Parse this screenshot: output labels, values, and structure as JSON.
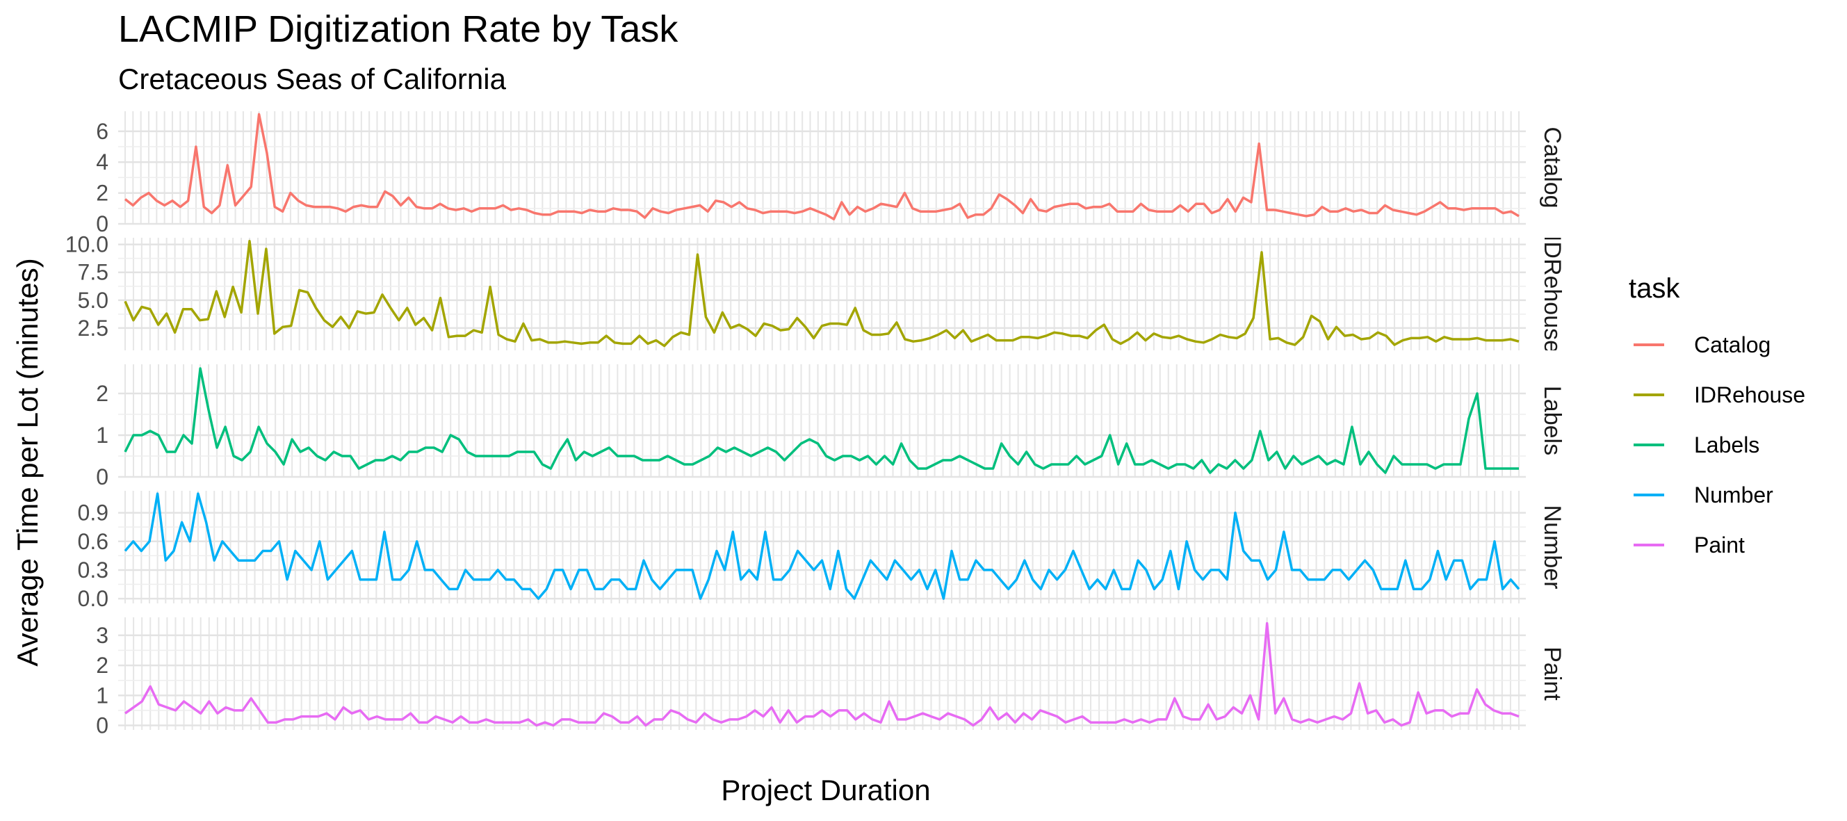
{
  "chart_data": {
    "type": "line",
    "title": "LACMIP Digitization Rate by Task",
    "subtitle": "Cretaceous Seas of California",
    "xlabel": "Project Duration",
    "ylabel": "Average Time per Lot (minutes)",
    "legend": {
      "title": "task",
      "position": "right"
    },
    "grid": true,
    "panels": [
      {
        "strip_label": "Catalog",
        "series": "Catalog",
        "color": "#F8766D",
        "ylim": [
          0,
          7.3
        ],
        "yticks": [
          0,
          2,
          4,
          6
        ],
        "yticklabels": [
          "0",
          "2",
          "4",
          "6"
        ],
        "values": [
          1.6,
          1.2,
          1.7,
          2.0,
          1.5,
          1.2,
          1.5,
          1.1,
          1.5,
          5.0,
          1.1,
          0.7,
          1.2,
          3.8,
          1.2,
          1.8,
          2.4,
          7.1,
          4.6,
          1.1,
          0.8,
          2.0,
          1.5,
          1.2,
          1.1,
          1.1,
          1.1,
          1.0,
          0.8,
          1.1,
          1.2,
          1.1,
          1.1,
          2.1,
          1.8,
          1.2,
          1.7,
          1.1,
          1.0,
          1.0,
          1.3,
          1.0,
          0.9,
          1.0,
          0.8,
          1.0,
          1.0,
          1.0,
          1.2,
          0.9,
          1.0,
          0.9,
          0.7,
          0.6,
          0.6,
          0.8,
          0.8,
          0.8,
          0.7,
          0.9,
          0.8,
          0.8,
          1.0,
          0.9,
          0.9,
          0.8,
          0.4,
          1.0,
          0.8,
          0.7,
          0.9,
          1.0,
          1.1,
          1.2,
          0.8,
          1.5,
          1.4,
          1.1,
          1.4,
          1.0,
          0.9,
          0.7,
          0.8,
          0.8,
          0.8,
          0.7,
          0.8,
          1.0,
          0.8,
          0.6,
          0.3,
          1.4,
          0.6,
          1.1,
          0.8,
          1.0,
          1.3,
          1.2,
          1.1,
          2.0,
          1.0,
          0.8,
          0.8,
          0.8,
          0.9,
          1.0,
          1.3,
          0.4,
          0.6,
          0.6,
          1.0,
          1.9,
          1.6,
          1.2,
          0.7,
          1.6,
          0.9,
          0.8,
          1.1,
          1.2,
          1.3,
          1.3,
          1.0,
          1.1,
          1.1,
          1.3,
          0.8,
          0.8,
          0.8,
          1.3,
          0.9,
          0.8,
          0.8,
          0.8,
          1.2,
          0.8,
          1.3,
          1.3,
          0.7,
          0.9,
          1.6,
          0.8,
          1.7,
          1.4,
          5.2,
          0.9,
          0.9,
          0.8,
          0.7,
          0.6,
          0.5,
          0.6,
          1.1,
          0.8,
          0.8,
          1.0,
          0.8,
          0.9,
          0.7,
          0.7,
          1.2,
          0.9,
          0.8,
          0.7,
          0.6,
          0.8,
          1.1,
          1.4,
          1.0,
          1.0,
          0.9,
          1.0,
          1.0,
          1.0,
          1.0,
          0.7,
          0.8,
          0.5
        ]
      },
      {
        "strip_label": "IDRehouse",
        "series": "IDRehouse",
        "color": "#A3A500",
        "ylim": [
          0.5,
          10.6
        ],
        "yticks": [
          2.5,
          5.0,
          7.5,
          10.0
        ],
        "yticklabels": [
          "2.5",
          "5.0",
          "7.5",
          "10.0"
        ],
        "values": [
          4.9,
          3.2,
          4.4,
          4.2,
          2.8,
          3.8,
          2.1,
          4.2,
          4.2,
          3.2,
          3.3,
          5.8,
          3.5,
          6.2,
          3.9,
          10.3,
          3.8,
          9.6,
          2.0,
          2.6,
          2.7,
          5.9,
          5.7,
          4.3,
          3.2,
          2.6,
          3.5,
          2.5,
          4.0,
          3.8,
          3.9,
          5.5,
          4.3,
          3.2,
          4.3,
          2.8,
          3.4,
          2.3,
          5.2,
          1.7,
          1.8,
          1.8,
          2.3,
          2.1,
          6.2,
          1.9,
          1.5,
          1.3,
          2.9,
          1.4,
          1.5,
          1.2,
          1.2,
          1.3,
          1.2,
          1.1,
          1.2,
          1.2,
          1.8,
          1.2,
          1.1,
          1.1,
          1.8,
          1.1,
          1.4,
          0.9,
          1.7,
          2.1,
          1.9,
          9.1,
          3.5,
          2.1,
          3.9,
          2.5,
          2.8,
          2.4,
          1.8,
          2.9,
          2.7,
          2.3,
          2.4,
          3.4,
          2.6,
          1.6,
          2.7,
          2.9,
          2.9,
          2.8,
          4.3,
          2.3,
          1.9,
          1.9,
          2.0,
          3.0,
          1.5,
          1.3,
          1.4,
          1.6,
          1.9,
          2.3,
          1.6,
          2.3,
          1.3,
          1.6,
          1.9,
          1.4,
          1.4,
          1.4,
          1.7,
          1.7,
          1.6,
          1.8,
          2.1,
          2.0,
          1.8,
          1.8,
          1.6,
          2.3,
          2.8,
          1.5,
          1.1,
          1.5,
          2.1,
          1.4,
          2.0,
          1.7,
          1.6,
          1.8,
          1.5,
          1.3,
          1.2,
          1.5,
          1.9,
          1.7,
          1.6,
          2.0,
          3.4,
          9.3,
          1.5,
          1.6,
          1.2,
          1.0,
          1.7,
          3.6,
          3.1,
          1.5,
          2.6,
          1.8,
          1.9,
          1.5,
          1.6,
          2.1,
          1.8,
          1.0,
          1.4,
          1.6,
          1.6,
          1.7,
          1.3,
          1.7,
          1.5,
          1.5,
          1.5,
          1.6,
          1.4,
          1.4,
          1.4,
          1.5,
          1.3
        ]
      },
      {
        "strip_label": "Labels",
        "series": "Labels",
        "color": "#00BF7D",
        "ylim": [
          0,
          2.7
        ],
        "yticks": [
          0,
          1,
          2
        ],
        "yticklabels": [
          "0",
          "1",
          "2"
        ],
        "values": [
          0.6,
          1.0,
          1.0,
          1.1,
          1.0,
          0.6,
          0.6,
          1.0,
          0.8,
          2.6,
          1.6,
          0.7,
          1.2,
          0.5,
          0.4,
          0.6,
          1.2,
          0.8,
          0.6,
          0.3,
          0.9,
          0.6,
          0.7,
          0.5,
          0.4,
          0.6,
          0.5,
          0.5,
          0.2,
          0.3,
          0.4,
          0.4,
          0.5,
          0.4,
          0.6,
          0.6,
          0.7,
          0.7,
          0.6,
          1.0,
          0.9,
          0.6,
          0.5,
          0.5,
          0.5,
          0.5,
          0.5,
          0.6,
          0.6,
          0.6,
          0.3,
          0.2,
          0.6,
          0.9,
          0.4,
          0.6,
          0.5,
          0.6,
          0.7,
          0.5,
          0.5,
          0.5,
          0.4,
          0.4,
          0.4,
          0.5,
          0.4,
          0.3,
          0.3,
          0.4,
          0.5,
          0.7,
          0.6,
          0.7,
          0.6,
          0.5,
          0.6,
          0.7,
          0.6,
          0.4,
          0.6,
          0.8,
          0.9,
          0.8,
          0.5,
          0.4,
          0.5,
          0.5,
          0.4,
          0.5,
          0.3,
          0.5,
          0.3,
          0.8,
          0.4,
          0.2,
          0.2,
          0.3,
          0.4,
          0.4,
          0.5,
          0.4,
          0.3,
          0.2,
          0.2,
          0.8,
          0.5,
          0.3,
          0.6,
          0.3,
          0.2,
          0.3,
          0.3,
          0.3,
          0.5,
          0.3,
          0.4,
          0.5,
          1.0,
          0.3,
          0.8,
          0.3,
          0.3,
          0.4,
          0.3,
          0.2,
          0.3,
          0.3,
          0.2,
          0.4,
          0.1,
          0.3,
          0.2,
          0.4,
          0.2,
          0.4,
          1.1,
          0.4,
          0.6,
          0.2,
          0.5,
          0.3,
          0.4,
          0.5,
          0.3,
          0.4,
          0.3,
          1.2,
          0.3,
          0.6,
          0.3,
          0.1,
          0.5,
          0.3,
          0.3,
          0.3,
          0.3,
          0.2,
          0.3,
          0.3,
          0.3,
          1.4,
          2.0,
          0.2,
          0.2,
          0.2,
          0.2,
          0.2
        ]
      },
      {
        "strip_label": "Number",
        "series": "Number",
        "color": "#00B0F6",
        "ylim": [
          -0.05,
          1.13
        ],
        "yticks": [
          0.0,
          0.3,
          0.6,
          0.9
        ],
        "yticklabels": [
          "0.0",
          "0.3",
          "0.6",
          "0.9"
        ],
        "values": [
          0.5,
          0.6,
          0.5,
          0.6,
          1.1,
          0.4,
          0.5,
          0.8,
          0.6,
          1.1,
          0.8,
          0.4,
          0.6,
          0.5,
          0.4,
          0.4,
          0.4,
          0.5,
          0.5,
          0.6,
          0.2,
          0.5,
          0.4,
          0.3,
          0.6,
          0.2,
          0.3,
          0.4,
          0.5,
          0.2,
          0.2,
          0.2,
          0.7,
          0.2,
          0.2,
          0.3,
          0.6,
          0.3,
          0.3,
          0.2,
          0.1,
          0.1,
          0.3,
          0.2,
          0.2,
          0.2,
          0.3,
          0.2,
          0.2,
          0.1,
          0.1,
          0.0,
          0.1,
          0.3,
          0.3,
          0.1,
          0.3,
          0.3,
          0.1,
          0.1,
          0.2,
          0.2,
          0.1,
          0.1,
          0.4,
          0.2,
          0.1,
          0.2,
          0.3,
          0.3,
          0.3,
          0.0,
          0.2,
          0.5,
          0.3,
          0.7,
          0.2,
          0.3,
          0.2,
          0.7,
          0.2,
          0.2,
          0.3,
          0.5,
          0.4,
          0.3,
          0.4,
          0.1,
          0.5,
          0.1,
          0.0,
          0.2,
          0.4,
          0.3,
          0.2,
          0.4,
          0.3,
          0.2,
          0.3,
          0.1,
          0.3,
          0.0,
          0.5,
          0.2,
          0.2,
          0.4,
          0.3,
          0.3,
          0.2,
          0.1,
          0.2,
          0.4,
          0.2,
          0.1,
          0.3,
          0.2,
          0.3,
          0.5,
          0.3,
          0.1,
          0.2,
          0.1,
          0.3,
          0.1,
          0.1,
          0.4,
          0.3,
          0.1,
          0.2,
          0.5,
          0.1,
          0.6,
          0.3,
          0.2,
          0.3,
          0.3,
          0.2,
          0.9,
          0.5,
          0.4,
          0.4,
          0.2,
          0.3,
          0.7,
          0.3,
          0.3,
          0.2,
          0.2,
          0.2,
          0.3,
          0.3,
          0.2,
          0.3,
          0.4,
          0.3,
          0.1,
          0.1,
          0.1,
          0.4,
          0.1,
          0.1,
          0.2,
          0.5,
          0.2,
          0.4,
          0.4,
          0.1,
          0.2,
          0.2,
          0.6,
          0.1,
          0.2,
          0.1
        ]
      },
      {
        "strip_label": "Paint",
        "series": "Paint",
        "color": "#E76BF3",
        "ylim": [
          -0.15,
          3.6
        ],
        "yticks": [
          0,
          1,
          2,
          3
        ],
        "yticklabels": [
          "0",
          "1",
          "2",
          "3"
        ],
        "values": [
          0.4,
          0.6,
          0.8,
          1.3,
          0.7,
          0.6,
          0.5,
          0.8,
          0.6,
          0.4,
          0.8,
          0.4,
          0.6,
          0.5,
          0.5,
          0.9,
          0.5,
          0.1,
          0.1,
          0.2,
          0.2,
          0.3,
          0.3,
          0.3,
          0.4,
          0.2,
          0.6,
          0.4,
          0.5,
          0.2,
          0.3,
          0.2,
          0.2,
          0.2,
          0.4,
          0.1,
          0.1,
          0.3,
          0.2,
          0.1,
          0.3,
          0.1,
          0.1,
          0.2,
          0.1,
          0.1,
          0.1,
          0.1,
          0.2,
          0.0,
          0.1,
          0.0,
          0.2,
          0.2,
          0.1,
          0.1,
          0.1,
          0.4,
          0.3,
          0.1,
          0.1,
          0.3,
          0.0,
          0.2,
          0.2,
          0.5,
          0.4,
          0.2,
          0.1,
          0.4,
          0.2,
          0.1,
          0.2,
          0.2,
          0.3,
          0.5,
          0.3,
          0.6,
          0.1,
          0.5,
          0.1,
          0.3,
          0.3,
          0.5,
          0.3,
          0.5,
          0.5,
          0.2,
          0.4,
          0.2,
          0.1,
          0.8,
          0.2,
          0.2,
          0.3,
          0.4,
          0.3,
          0.2,
          0.4,
          0.3,
          0.2,
          0.0,
          0.2,
          0.6,
          0.2,
          0.4,
          0.1,
          0.4,
          0.2,
          0.5,
          0.4,
          0.3,
          0.1,
          0.2,
          0.3,
          0.1,
          0.1,
          0.1,
          0.1,
          0.2,
          0.1,
          0.2,
          0.1,
          0.2,
          0.2,
          0.9,
          0.3,
          0.2,
          0.2,
          0.7,
          0.2,
          0.3,
          0.6,
          0.4,
          1.0,
          0.2,
          3.4,
          0.4,
          0.9,
          0.2,
          0.1,
          0.2,
          0.1,
          0.2,
          0.3,
          0.2,
          0.4,
          1.4,
          0.4,
          0.5,
          0.1,
          0.2,
          0.0,
          0.1,
          1.1,
          0.4,
          0.5,
          0.5,
          0.3,
          0.4,
          0.4,
          1.2,
          0.7,
          0.5,
          0.4,
          0.4,
          0.3
        ]
      }
    ],
    "legend_entries": [
      {
        "label": "Catalog",
        "color": "#F8766D"
      },
      {
        "label": "IDRehouse",
        "color": "#A3A500"
      },
      {
        "label": "Labels",
        "color": "#00BF7D"
      },
      {
        "label": "Number",
        "color": "#00B0F6"
      },
      {
        "label": "Paint",
        "color": "#E76BF3"
      }
    ]
  }
}
